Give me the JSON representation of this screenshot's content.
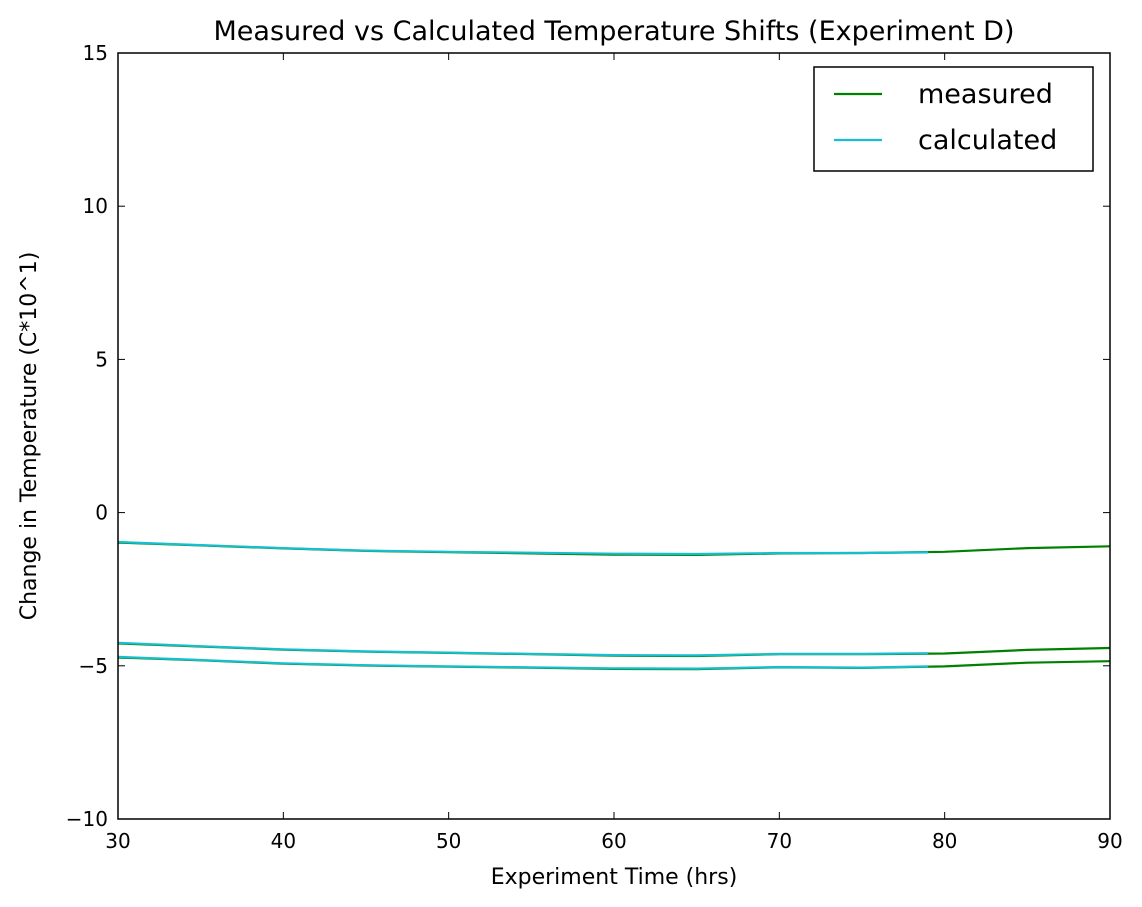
{
  "chart_data": {
    "type": "line",
    "title": "Measured vs Calculated Temperature Shifts (Experiment D)",
    "xlabel": "Experiment Time (hrs)",
    "ylabel": "Change in Temperature (C*10^1)",
    "xlim": [
      30,
      90
    ],
    "ylim": [
      -10,
      15
    ],
    "xticks": [
      "30",
      "40",
      "50",
      "60",
      "70",
      "80",
      "90"
    ],
    "yticks": [
      "−10",
      "−5",
      "0",
      "5",
      "10",
      "15"
    ],
    "grid": false,
    "legend_position": "top-right",
    "legend": [
      "measured",
      "calculated"
    ],
    "series": [
      {
        "name": "measured",
        "color": "#008000",
        "groups": [
          {
            "x": [
              30,
              35,
              40,
              45,
              50,
              55,
              60,
              65,
              70,
              75,
              80,
              85,
              90
            ],
            "y": [
              -0.98,
              -1.07,
              -1.17,
              -1.25,
              -1.29,
              -1.33,
              -1.37,
              -1.38,
              -1.33,
              -1.32,
              -1.28,
              -1.16,
              -1.1
            ]
          },
          {
            "x": [
              30,
              35,
              40,
              45,
              50,
              55,
              60,
              65,
              70,
              75,
              80,
              85,
              90
            ],
            "y": [
              -4.27,
              -4.37,
              -4.47,
              -4.54,
              -4.58,
              -4.62,
              -4.67,
              -4.68,
              -4.62,
              -4.62,
              -4.6,
              -4.48,
              -4.42
            ]
          },
          {
            "x": [
              30,
              35,
              40,
              45,
              50,
              55,
              60,
              65,
              70,
              75,
              80,
              85,
              90
            ],
            "y": [
              -4.73,
              -4.82,
              -4.93,
              -4.99,
              -5.03,
              -5.06,
              -5.1,
              -5.11,
              -5.05,
              -5.07,
              -5.02,
              -4.9,
              -4.85
            ]
          }
        ]
      },
      {
        "name": "calculated",
        "color": "#17becf",
        "groups": [
          {
            "x": [
              30,
              35,
              40,
              45,
              50,
              55,
              60,
              65,
              70,
              75,
              79
            ],
            "y": [
              -0.96,
              -1.06,
              -1.16,
              -1.24,
              -1.28,
              -1.31,
              -1.34,
              -1.35,
              -1.32,
              -1.32,
              -1.3
            ]
          },
          {
            "x": [
              30,
              35,
              40,
              45,
              50,
              55,
              60,
              65,
              70,
              75,
              79
            ],
            "y": [
              -4.25,
              -4.36,
              -4.46,
              -4.53,
              -4.57,
              -4.61,
              -4.65,
              -4.66,
              -4.61,
              -4.61,
              -4.59
            ]
          },
          {
            "x": [
              30,
              35,
              40,
              45,
              50,
              55,
              60,
              65,
              70,
              75,
              79
            ],
            "y": [
              -4.71,
              -4.81,
              -4.92,
              -4.98,
              -5.02,
              -5.05,
              -5.08,
              -5.09,
              -5.04,
              -5.06,
              -5.02
            ]
          }
        ]
      }
    ]
  }
}
